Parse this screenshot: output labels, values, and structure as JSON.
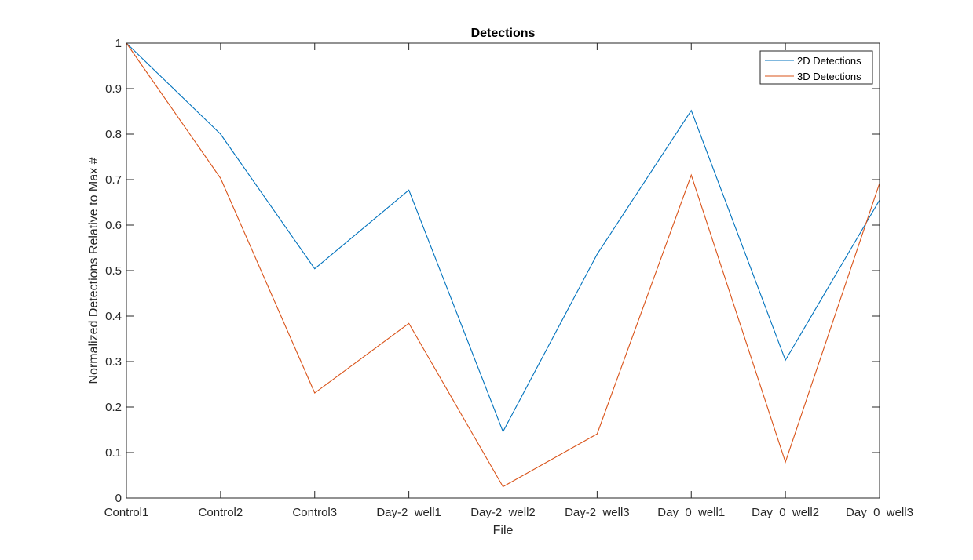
{
  "chart_data": {
    "type": "line",
    "title": "Detections",
    "xlabel": "File",
    "ylabel": "Normalized Detections Relative to Max #",
    "categories": [
      "Control1",
      "Control2",
      "Control3",
      "Day-2_well1",
      "Day-2_well2",
      "Day-2_well3",
      "Day_0_well1",
      "Day_0_well2",
      "Day_0_well3"
    ],
    "ylim": [
      0,
      1
    ],
    "yticks": [
      "0",
      "0.1",
      "0.2",
      "0.3",
      "0.4",
      "0.5",
      "0.6",
      "0.7",
      "0.8",
      "0.9",
      "1"
    ],
    "grid": false,
    "legend_position": "top-right",
    "series": [
      {
        "name": "2D Detections",
        "color": "#0072BD",
        "values": [
          1.0,
          0.8,
          0.504,
          0.677,
          0.146,
          0.536,
          0.852,
          0.303,
          0.655
        ]
      },
      {
        "name": "3D Detections",
        "color": "#D95319",
        "values": [
          1.0,
          0.703,
          0.231,
          0.384,
          0.025,
          0.141,
          0.71,
          0.079,
          0.692
        ]
      }
    ]
  }
}
